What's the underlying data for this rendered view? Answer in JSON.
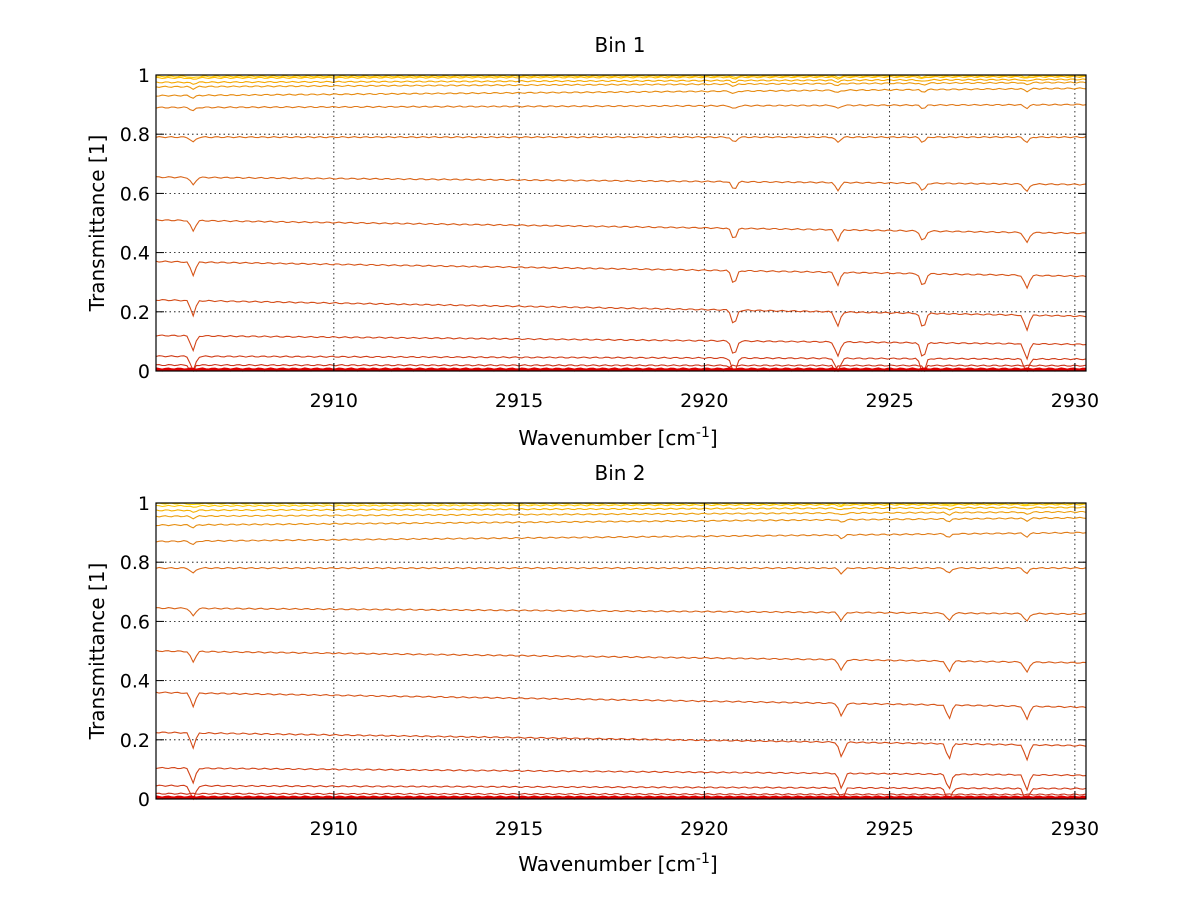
{
  "chart_data": [
    {
      "type": "line",
      "title": "Bin 1",
      "xlabel": "Wavenumber [cm",
      "xlabel_sup": "-1",
      "xlabel_end": "]",
      "ylabel": "Transmittance [1]",
      "xlim": [
        2905.2,
        2930.3
      ],
      "ylim": [
        0,
        1
      ],
      "xticks": [
        "2910",
        "2915",
        "2920",
        "2925",
        "2930"
      ],
      "yticks": [
        "0",
        "0.2",
        "0.4",
        "0.6",
        "0.8",
        "1"
      ],
      "grid": true,
      "series": [
        {
          "color": "#ffcc00",
          "values": [
            [
              2905.2,
              0.995
            ],
            [
              2930.3,
              0.998
            ]
          ]
        },
        {
          "color": "#ffbb00",
          "values": [
            [
              2905.2,
              0.99
            ],
            [
              2930.3,
              0.994
            ]
          ]
        },
        {
          "color": "#f5a800",
          "values": [
            [
              2905.2,
              0.975
            ],
            [
              2930.3,
              0.985
            ]
          ]
        },
        {
          "color": "#ec9a10",
          "values": [
            [
              2905.2,
              0.96
            ],
            [
              2930.3,
              0.975
            ]
          ]
        },
        {
          "color": "#e68a10",
          "values": [
            [
              2905.2,
              0.93
            ],
            [
              2930.3,
              0.955
            ]
          ]
        },
        {
          "color": "#e07818",
          "values": [
            [
              2905.2,
              0.89
            ],
            [
              2930.3,
              0.9
            ]
          ]
        },
        {
          "color": "#dd6c18",
          "values": [
            [
              2905.2,
              0.79
            ],
            [
              2930.3,
              0.79
            ]
          ]
        },
        {
          "color": "#d96418",
          "values": [
            [
              2905.2,
              0.655
            ],
            [
              2930.3,
              0.63
            ]
          ]
        },
        {
          "color": "#d85c18",
          "values": [
            [
              2905.2,
              0.51
            ],
            [
              2930.3,
              0.465
            ]
          ]
        },
        {
          "color": "#d65418",
          "values": [
            [
              2905.2,
              0.37
            ],
            [
              2930.3,
              0.32
            ]
          ]
        },
        {
          "color": "#d44c18",
          "values": [
            [
              2905.2,
              0.24
            ],
            [
              2930.3,
              0.185
            ]
          ]
        },
        {
          "color": "#d24418",
          "values": [
            [
              2905.2,
              0.12
            ],
            [
              2930.3,
              0.09
            ]
          ]
        },
        {
          "color": "#d03c18",
          "values": [
            [
              2905.2,
              0.05
            ],
            [
              2930.3,
              0.04
            ]
          ]
        },
        {
          "color": "#cc3018",
          "values": [
            [
              2905.2,
              0.02
            ],
            [
              2930.3,
              0.018
            ]
          ]
        },
        {
          "color": "#dd0000",
          "values": [
            [
              2905.2,
              0.005
            ],
            [
              2930.3,
              0.005
            ]
          ]
        }
      ],
      "dips": [
        2906.2,
        2920.8,
        2923.6,
        2925.9,
        2928.7
      ]
    },
    {
      "type": "line",
      "title": "Bin 2",
      "xlabel": "Wavenumber [cm",
      "xlabel_sup": "-1",
      "xlabel_end": "]",
      "ylabel": "Transmittance [1]",
      "xlim": [
        2905.2,
        2930.3
      ],
      "ylim": [
        0,
        1
      ],
      "xticks": [
        "2910",
        "2915",
        "2920",
        "2925",
        "2930"
      ],
      "yticks": [
        "0",
        "0.2",
        "0.4",
        "0.6",
        "0.8",
        "1"
      ],
      "grid": true,
      "series": [
        {
          "color": "#ffdd00",
          "values": [
            [
              2905.2,
              0.998
            ],
            [
              2930.3,
              0.999
            ]
          ]
        },
        {
          "color": "#ffc800",
          "values": [
            [
              2905.2,
              0.99
            ],
            [
              2930.3,
              0.995
            ]
          ]
        },
        {
          "color": "#f5b000",
          "values": [
            [
              2905.2,
              0.975
            ],
            [
              2930.3,
              0.985
            ]
          ]
        },
        {
          "color": "#eda010",
          "values": [
            [
              2905.2,
              0.955
            ],
            [
              2930.3,
              0.97
            ]
          ]
        },
        {
          "color": "#e68e10",
          "values": [
            [
              2905.2,
              0.925
            ],
            [
              2930.3,
              0.95
            ]
          ]
        },
        {
          "color": "#e07c18",
          "values": [
            [
              2905.2,
              0.87
            ],
            [
              2930.3,
              0.9
            ]
          ]
        },
        {
          "color": "#dd6c18",
          "values": [
            [
              2905.2,
              0.78
            ],
            [
              2930.3,
              0.78
            ]
          ]
        },
        {
          "color": "#d96418",
          "values": [
            [
              2905.2,
              0.645
            ],
            [
              2930.3,
              0.625
            ]
          ]
        },
        {
          "color": "#d85c18",
          "values": [
            [
              2905.2,
              0.5
            ],
            [
              2930.3,
              0.46
            ]
          ]
        },
        {
          "color": "#d65418",
          "values": [
            [
              2905.2,
              0.36
            ],
            [
              2930.3,
              0.31
            ]
          ]
        },
        {
          "color": "#d44c18",
          "values": [
            [
              2905.2,
              0.225
            ],
            [
              2930.3,
              0.18
            ]
          ]
        },
        {
          "color": "#d24418",
          "values": [
            [
              2905.2,
              0.105
            ],
            [
              2930.3,
              0.08
            ]
          ]
        },
        {
          "color": "#d03c18",
          "values": [
            [
              2905.2,
              0.045
            ],
            [
              2930.3,
              0.035
            ]
          ]
        },
        {
          "color": "#cc3018",
          "values": [
            [
              2905.2,
              0.018
            ],
            [
              2930.3,
              0.015
            ]
          ]
        },
        {
          "color": "#dd0000",
          "values": [
            [
              2905.2,
              0.005
            ],
            [
              2930.3,
              0.005
            ]
          ]
        }
      ],
      "dips": [
        2906.2,
        2923.7,
        2926.6,
        2928.7
      ]
    }
  ]
}
